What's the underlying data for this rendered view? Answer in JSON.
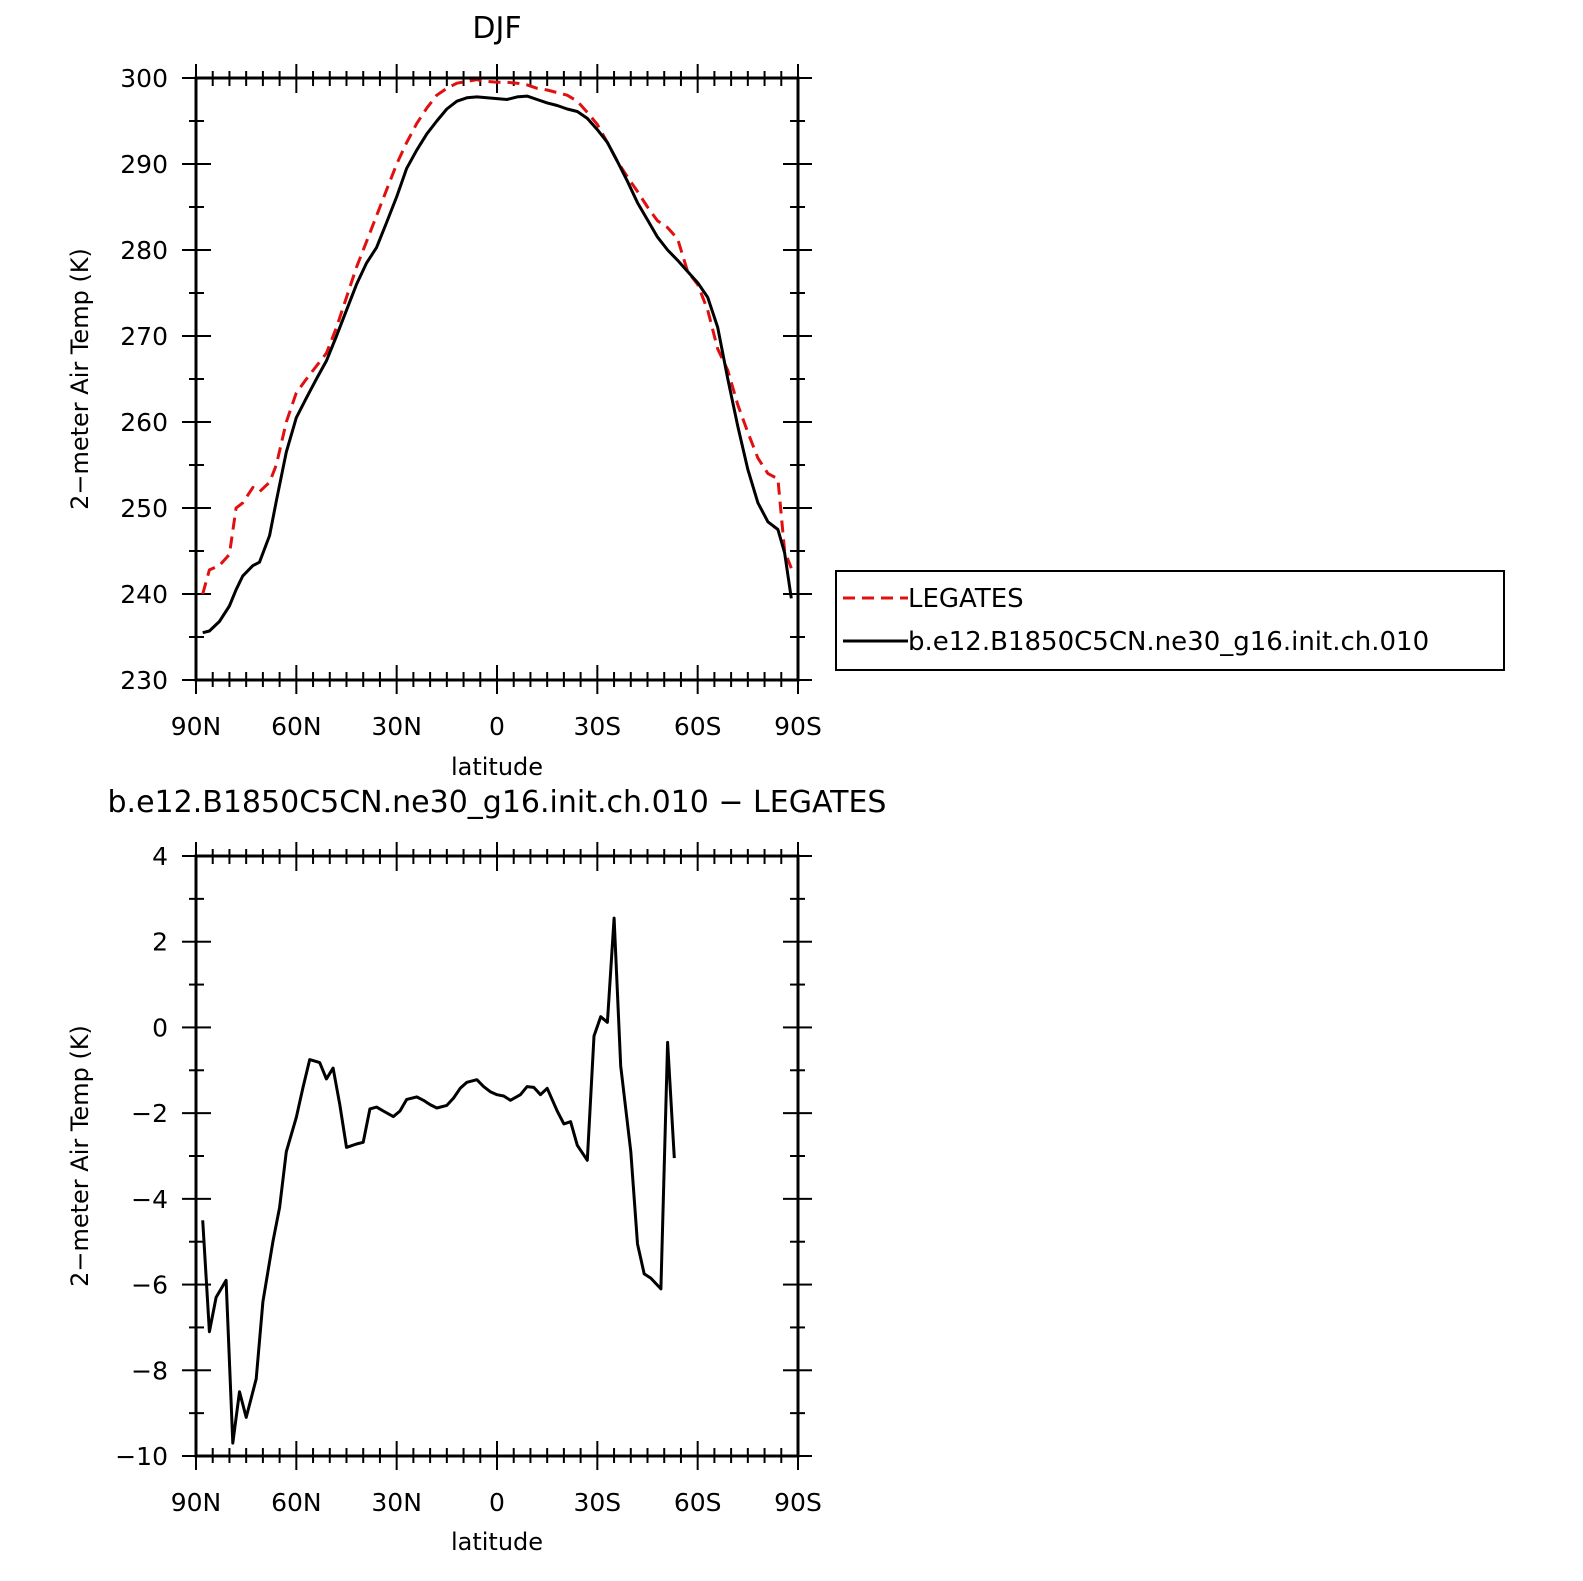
{
  "chart_data": [
    {
      "type": "line",
      "title": "DJF",
      "xlabel": "latitude",
      "ylabel": "2−meter Air Temp (K)",
      "xlim": [
        90,
        -90
      ],
      "ylim": [
        230,
        300
      ],
      "xticks": [
        {
          "value": 90,
          "label": "90N"
        },
        {
          "value": 60,
          "label": "60N"
        },
        {
          "value": 30,
          "label": "30N"
        },
        {
          "value": 0,
          "label": "0"
        },
        {
          "value": -30,
          "label": "30S"
        },
        {
          "value": -60,
          "label": "60S"
        },
        {
          "value": -90,
          "label": "90S"
        }
      ],
      "yticks": [
        230,
        240,
        250,
        260,
        270,
        280,
        290,
        300
      ],
      "legend": "right",
      "series": [
        {
          "name": "LEGATES",
          "color": "#e01010",
          "dash": true,
          "points": [
            [
              88,
              240.0
            ],
            [
              86,
              242.8
            ],
            [
              83,
              243.3
            ],
            [
              80,
              244.6
            ],
            [
              78,
              250.0
            ],
            [
              76,
              250.6
            ],
            [
              73,
              252.4
            ],
            [
              71,
              251.9
            ],
            [
              68,
              253.0
            ],
            [
              66,
              255.0
            ],
            [
              63,
              260.0
            ],
            [
              60,
              263.4
            ],
            [
              57,
              265.0
            ],
            [
              54,
              266.5
            ],
            [
              51,
              268.0
            ],
            [
              48,
              271.0
            ],
            [
              45,
              274.5
            ],
            [
              42,
              278.0
            ],
            [
              39,
              281.0
            ],
            [
              36,
              284.0
            ],
            [
              33,
              287.0
            ],
            [
              30,
              290.0
            ],
            [
              27,
              292.5
            ],
            [
              24,
              294.7
            ],
            [
              21,
              296.5
            ],
            [
              18,
              298.0
            ],
            [
              15,
              298.8
            ],
            [
              12,
              299.4
            ],
            [
              9,
              299.6
            ],
            [
              6,
              299.8
            ],
            [
              3,
              299.6
            ],
            [
              0,
              299.5
            ],
            [
              -3,
              299.5
            ],
            [
              -6,
              299.4
            ],
            [
              -9,
              299.2
            ],
            [
              -12,
              298.8
            ],
            [
              -15,
              298.6
            ],
            [
              -18,
              298.3
            ],
            [
              -21,
              298.0
            ],
            [
              -24,
              297.3
            ],
            [
              -27,
              296.0
            ],
            [
              -30,
              294.6
            ],
            [
              -33,
              292.5
            ],
            [
              -36,
              290.3
            ],
            [
              -39,
              288.5
            ],
            [
              -42,
              286.8
            ],
            [
              -45,
              285.0
            ],
            [
              -48,
              283.4
            ],
            [
              -51,
              282.6
            ],
            [
              -54,
              281.3
            ],
            [
              -57,
              277.5
            ],
            [
              -60,
              276.0
            ],
            [
              -63,
              273.0
            ],
            [
              -66,
              268.5
            ],
            [
              -69,
              266.0
            ],
            [
              -72,
              262.0
            ],
            [
              -75,
              258.8
            ],
            [
              -78,
              255.8
            ],
            [
              -81,
              254.0
            ],
            [
              -84,
              253.4
            ],
            [
              -86,
              245.0
            ],
            [
              -88,
              243.0
            ]
          ]
        },
        {
          "name": "b.e12.B1850C5CN.ne30_g16.init.ch.010",
          "color": "#000000",
          "dash": false,
          "points": [
            [
              88,
              235.5
            ],
            [
              86,
              235.7
            ],
            [
              83,
              236.8
            ],
            [
              80,
              238.6
            ],
            [
              78,
              240.5
            ],
            [
              76,
              242.1
            ],
            [
              73,
              243.3
            ],
            [
              71,
              243.7
            ],
            [
              68,
              246.8
            ],
            [
              66,
              250.8
            ],
            [
              63,
              256.5
            ],
            [
              60,
              260.5
            ],
            [
              57,
              262.8
            ],
            [
              54,
              265.0
            ],
            [
              51,
              267.1
            ],
            [
              48,
              270.0
            ],
            [
              45,
              273.0
            ],
            [
              42,
              276.0
            ],
            [
              39,
              278.5
            ],
            [
              36,
              280.3
            ],
            [
              33,
              283.2
            ],
            [
              30,
              286.2
            ],
            [
              27,
              289.5
            ],
            [
              24,
              291.6
            ],
            [
              21,
              293.5
            ],
            [
              18,
              295.0
            ],
            [
              15,
              296.4
            ],
            [
              12,
              297.3
            ],
            [
              9,
              297.7
            ],
            [
              6,
              297.8
            ],
            [
              3,
              297.7
            ],
            [
              0,
              297.6
            ],
            [
              -3,
              297.5
            ],
            [
              -6,
              297.8
            ],
            [
              -9,
              297.9
            ],
            [
              -12,
              297.5
            ],
            [
              -15,
              297.1
            ],
            [
              -18,
              296.8
            ],
            [
              -21,
              296.4
            ],
            [
              -24,
              296.1
            ],
            [
              -27,
              295.3
            ],
            [
              -30,
              294.0
            ],
            [
              -33,
              292.5
            ],
            [
              -36,
              290.3
            ],
            [
              -39,
              288.0
            ],
            [
              -42,
              285.5
            ],
            [
              -45,
              283.5
            ],
            [
              -48,
              281.5
            ],
            [
              -51,
              280.0
            ],
            [
              -54,
              278.8
            ],
            [
              -57,
              277.5
            ],
            [
              -60,
              276.2
            ],
            [
              -63,
              274.5
            ],
            [
              -66,
              271.0
            ],
            [
              -69,
              265.0
            ],
            [
              -72,
              259.5
            ],
            [
              -75,
              254.5
            ],
            [
              -78,
              250.6
            ],
            [
              -81,
              248.4
            ],
            [
              -84,
              247.5
            ],
            [
              -86,
              244.8
            ],
            [
              -88,
              239.5
            ]
          ]
        }
      ]
    },
    {
      "type": "line",
      "title": "b.e12.B1850C5CN.ne30_g16.init.ch.010 − LEGATES",
      "xlabel": "latitude",
      "ylabel": "2−meter Air Temp (K)",
      "xlim": [
        90,
        -90
      ],
      "ylim": [
        -10,
        4
      ],
      "xticks": [
        {
          "value": 90,
          "label": "90N"
        },
        {
          "value": 60,
          "label": "60N"
        },
        {
          "value": 30,
          "label": "30N"
        },
        {
          "value": 0,
          "label": "0"
        },
        {
          "value": -30,
          "label": "30S"
        },
        {
          "value": -60,
          "label": "60S"
        },
        {
          "value": -90,
          "label": "90S"
        }
      ],
      "yticks": [
        {
          "value": -10,
          "label": "−10"
        },
        {
          "value": -8,
          "label": "−8"
        },
        {
          "value": -6,
          "label": "−6"
        },
        {
          "value": -4,
          "label": "−4"
        },
        {
          "value": -2,
          "label": "−2"
        },
        {
          "value": 0,
          "label": "0"
        },
        {
          "value": 2,
          "label": "2"
        },
        {
          "value": 4,
          "label": "4"
        }
      ],
      "series": [
        {
          "color": "#000000",
          "dash": false,
          "points": [
            [
              88,
              -4.5
            ],
            [
              86,
              -7.1
            ],
            [
              84,
              -6.3
            ],
            [
              81,
              -5.9
            ],
            [
              79,
              -9.7
            ],
            [
              77,
              -8.5
            ],
            [
              75,
              -9.1
            ],
            [
              72,
              -8.2
            ],
            [
              70,
              -6.4
            ],
            [
              67,
              -5.0
            ],
            [
              65,
              -4.2
            ],
            [
              63,
              -2.9
            ],
            [
              60,
              -2.1
            ],
            [
              58,
              -1.4
            ],
            [
              56,
              -0.75
            ],
            [
              53,
              -0.82
            ],
            [
              51,
              -1.2
            ],
            [
              49,
              -0.95
            ],
            [
              47,
              -1.8
            ],
            [
              45,
              -2.8
            ],
            [
              42,
              -2.72
            ],
            [
              40,
              -2.68
            ],
            [
              38,
              -1.9
            ],
            [
              36,
              -1.86
            ],
            [
              34,
              -1.95
            ],
            [
              31,
              -2.08
            ],
            [
              29,
              -1.95
            ],
            [
              27,
              -1.68
            ],
            [
              24,
              -1.62
            ],
            [
              22,
              -1.7
            ],
            [
              20,
              -1.8
            ],
            [
              18,
              -1.88
            ],
            [
              15,
              -1.82
            ],
            [
              13,
              -1.65
            ],
            [
              11,
              -1.42
            ],
            [
              9,
              -1.28
            ],
            [
              6,
              -1.22
            ],
            [
              4,
              -1.38
            ],
            [
              2,
              -1.5
            ],
            [
              0,
              -1.57
            ],
            [
              -2,
              -1.6
            ],
            [
              -4,
              -1.7
            ],
            [
              -7,
              -1.57
            ],
            [
              -9,
              -1.38
            ],
            [
              -11,
              -1.4
            ],
            [
              -13,
              -1.57
            ],
            [
              -15,
              -1.42
            ],
            [
              -18,
              -1.95
            ],
            [
              -20,
              -2.25
            ],
            [
              -22,
              -2.2
            ],
            [
              -24,
              -2.75
            ],
            [
              -27,
              -3.1
            ],
            [
              -29,
              -0.2
            ],
            [
              -31,
              0.25
            ],
            [
              -33,
              0.12
            ],
            [
              -35,
              2.55
            ],
            [
              -37,
              -0.9
            ],
            [
              -40,
              -2.9
            ],
            [
              -42,
              -5.05
            ],
            [
              -44,
              -5.75
            ],
            [
              -46,
              -5.85
            ],
            [
              -49,
              -6.1
            ],
            [
              -51,
              -0.35
            ],
            [
              -53,
              -3.05
            ]
          ]
        }
      ]
    }
  ]
}
